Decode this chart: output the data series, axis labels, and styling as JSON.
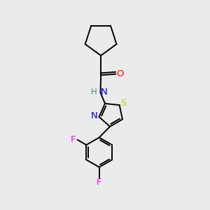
{
  "background_color": "#ebebeb",
  "bond_color": "#000000",
  "atom_colors": {
    "O": "#ff0000",
    "N": "#0000ee",
    "S": "#cccc00",
    "F": "#ff00ff",
    "H": "#4a8a8a"
  },
  "figsize": [
    3.0,
    3.0
  ],
  "dpi": 100
}
